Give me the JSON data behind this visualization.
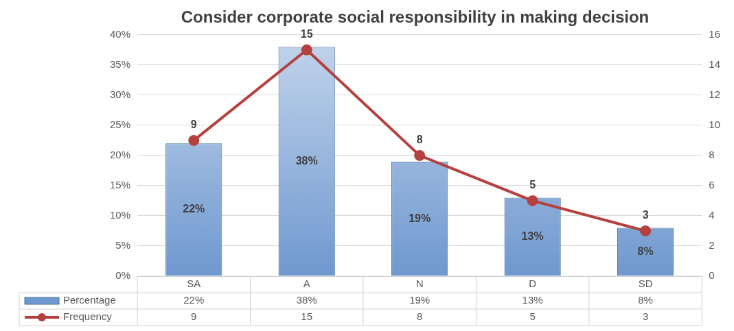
{
  "chart_data": {
    "type": "bar",
    "title": "Consider corporate social responsibility in making decision",
    "categories": [
      "SA",
      "A",
      "N",
      "D",
      "SD"
    ],
    "series": [
      {
        "name": "Percentage",
        "color": "#6f98cf",
        "values": [
          22,
          38,
          19,
          13,
          8
        ],
        "value_labels": [
          "22%",
          "38%",
          "19%",
          "13%",
          "8%"
        ]
      },
      {
        "name": "Frequency",
        "type": "line",
        "axis": "y2",
        "color": "#b5413f",
        "values": [
          9,
          15,
          8,
          5,
          3
        ],
        "value_labels": [
          "9",
          "15",
          "8",
          "5",
          "3"
        ]
      }
    ],
    "ylim": [
      0,
      40
    ],
    "yticks": [
      {
        "value": 0,
        "label": "0%"
      },
      {
        "value": 5,
        "label": "5%"
      },
      {
        "value": 10,
        "label": "10%"
      },
      {
        "value": 15,
        "label": "15%"
      },
      {
        "value": 20,
        "label": "20%"
      },
      {
        "value": 25,
        "label": "25%"
      },
      {
        "value": 30,
        "label": "30%"
      },
      {
        "value": 35,
        "label": "35%"
      },
      {
        "value": 40,
        "label": "40%"
      }
    ],
    "y2lim": [
      0,
      16
    ],
    "y2ticks": [
      0,
      2,
      4,
      6,
      8,
      10,
      12,
      14,
      16
    ],
    "grid": "y",
    "legend": "bottom",
    "marker": "circle",
    "line_style": "solid"
  }
}
